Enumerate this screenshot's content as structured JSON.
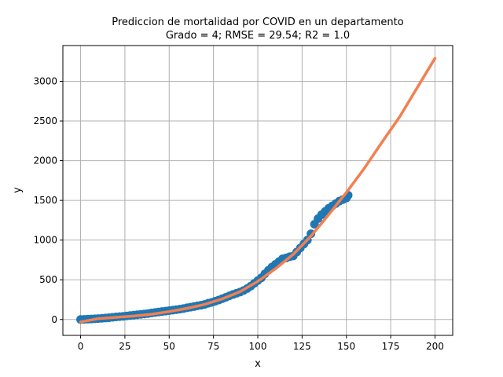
{
  "chart_data": {
    "type": "scatter",
    "title_line1": "Prediccion de mortalidad por COVID en un departamento",
    "title_line2": "Grado = 4; RMSE = 29.54; R2 = 1.0",
    "xlabel": "x",
    "ylabel": "y",
    "xlim": [
      -10,
      210
    ],
    "ylim": [
      -200,
      3450
    ],
    "xticks": [
      0,
      25,
      50,
      75,
      100,
      125,
      150,
      175,
      200
    ],
    "yticks": [
      0,
      500,
      1000,
      1500,
      2000,
      2500,
      3000
    ],
    "grid": true,
    "colors": {
      "scatter": "#1f77b4",
      "fit": "#f47f50"
    },
    "series": [
      {
        "kind": "scatter",
        "x": [
          0,
          2,
          4,
          6,
          8,
          10,
          12,
          14,
          16,
          18,
          20,
          22,
          24,
          26,
          28,
          30,
          32,
          34,
          36,
          38,
          40,
          42,
          44,
          46,
          48,
          50,
          52,
          54,
          56,
          58,
          60,
          62,
          64,
          66,
          68,
          70,
          72,
          74,
          76,
          78,
          80,
          82,
          84,
          86,
          88,
          90,
          92,
          94,
          96,
          98,
          100,
          102,
          104,
          106,
          108,
          110,
          112,
          114,
          116,
          118,
          120,
          122,
          124,
          126,
          128,
          130,
          132,
          134,
          136,
          138,
          140,
          142,
          144,
          146,
          148,
          150,
          151
        ],
        "y": [
          0,
          2,
          4,
          6,
          9,
          12,
          15,
          19,
          23,
          28,
          32,
          36,
          40,
          45,
          50,
          55,
          60,
          65,
          70,
          75,
          82,
          88,
          94,
          100,
          106,
          112,
          118,
          124,
          130,
          138,
          147,
          155,
          163,
          172,
          180,
          190,
          205,
          215,
          230,
          245,
          262,
          280,
          298,
          315,
          330,
          345,
          365,
          390,
          420,
          455,
          490,
          525,
          575,
          620,
          660,
          695,
          730,
          765,
          775,
          790,
          800,
          850,
          900,
          950,
          1000,
          1080,
          1200,
          1270,
          1320,
          1360,
          1400,
          1430,
          1460,
          1490,
          1510,
          1530,
          1565
        ]
      },
      {
        "kind": "line",
        "x": [
          0,
          10,
          20,
          30,
          40,
          50,
          60,
          70,
          80,
          90,
          100,
          110,
          120,
          130,
          140,
          150,
          160,
          170,
          180,
          190,
          200
        ],
        "y": [
          -30,
          10,
          28,
          44,
          66,
          100,
          140,
          190,
          260,
          350,
          480,
          640,
          820,
          1050,
          1320,
          1600,
          1900,
          2230,
          2550,
          2920,
          3290
        ]
      }
    ]
  }
}
